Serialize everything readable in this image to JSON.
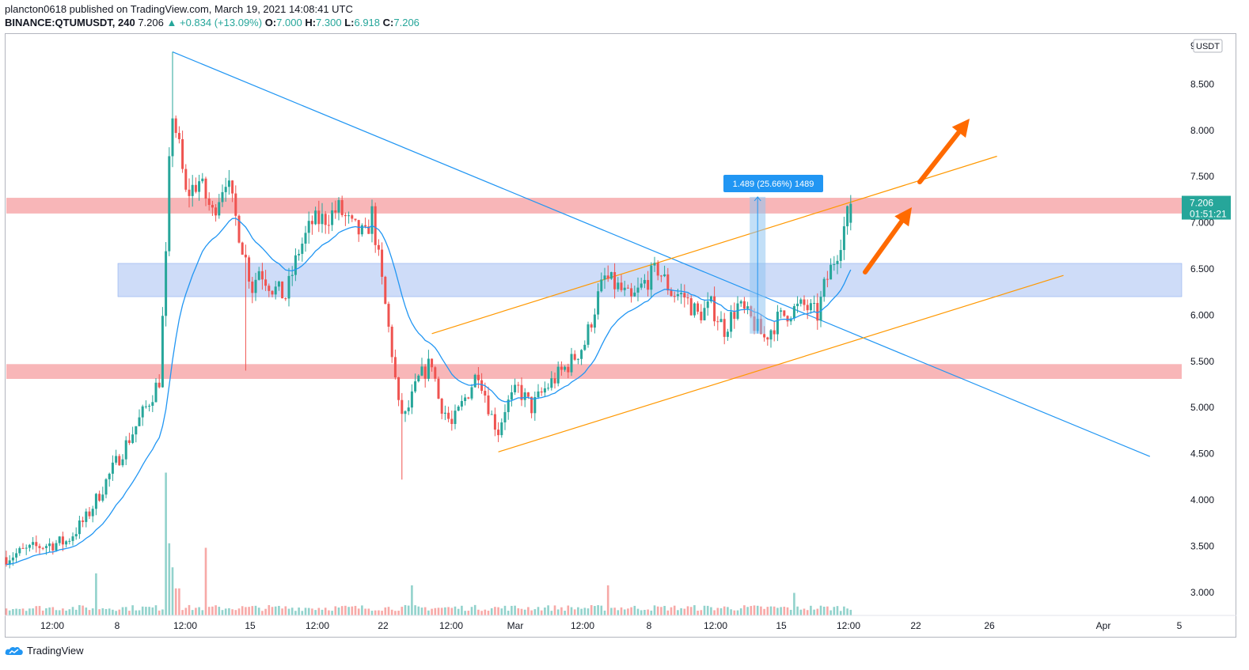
{
  "header": {
    "publisher_line": "plancton0618 published on TradingView.com, March 19, 2021 14:08:41 UTC",
    "symbol": "BINANCE:QTUMUSDT, 240",
    "last": "7.206",
    "change_arrow": "▲",
    "change": "+0.834 (+13.09%)",
    "o_label": "O:",
    "o_value": "7.000",
    "h_label": "H:",
    "h_value": "7.300",
    "l_label": "L:",
    "l_value": "6.918",
    "c_label": "C:",
    "c_value": "7.206"
  },
  "footer": {
    "brand": "TradingView",
    "logo_icon": "tradingview-logo-icon"
  },
  "colors": {
    "up": "#26a69a",
    "down": "#ef5350",
    "ma": "#2196f3",
    "trendline": "#2196f3",
    "channel": "#ff9800",
    "resistance_zone": "#f7a9ab",
    "support_zone": "#c5d6f7",
    "arrow": "#ff6a00",
    "measure": "#90c4f0"
  },
  "chart_data": {
    "type": "candlestick",
    "currency_label": "USDT",
    "ylim": [
      2.75,
      9.0
    ],
    "price_ticks": [
      "9",
      "8.500",
      "8.000",
      "7.500",
      "7.000",
      "6.500",
      "6.000",
      "5.500",
      "5.000",
      "4.500",
      "4.000",
      "3.500",
      "3.000"
    ],
    "time_ticks": [
      "12:00",
      "8",
      "12:00",
      "15",
      "12:00",
      "22",
      "12:00",
      "Mar",
      "12:00",
      "8",
      "12:00",
      "15",
      "12:00",
      "22",
      "26",
      "Apr",
      "5"
    ],
    "price_label": {
      "value": "7.206",
      "countdown": "01:51:21"
    },
    "measure_label": "1.489 (25.66%) 1489",
    "zones": [
      {
        "name": "resistance-zone",
        "from": 7.1,
        "to": 7.27
      },
      {
        "name": "support-zone",
        "from": 6.2,
        "to": 6.56
      },
      {
        "name": "lower-zone",
        "from": 5.31,
        "to": 5.47
      }
    ],
    "price_anchors": [
      [
        0,
        3.38
      ],
      [
        10,
        3.5
      ],
      [
        18,
        3.55
      ],
      [
        24,
        3.8
      ],
      [
        30,
        4.2
      ],
      [
        36,
        4.6
      ],
      [
        42,
        5.0
      ],
      [
        46,
        5.3
      ],
      [
        48,
        6.6
      ],
      [
        49,
        7.6
      ],
      [
        50,
        8.2
      ],
      [
        52,
        7.8
      ],
      [
        54,
        7.3
      ],
      [
        58,
        7.45
      ],
      [
        62,
        7.1
      ],
      [
        66,
        7.5
      ],
      [
        70,
        6.9
      ],
      [
        72,
        6.6
      ],
      [
        74,
        6.3
      ],
      [
        76,
        6.5
      ],
      [
        80,
        6.3
      ],
      [
        84,
        6.2
      ],
      [
        88,
        6.7
      ],
      [
        92,
        7.0
      ],
      [
        96,
        7.05
      ],
      [
        100,
        7.15
      ],
      [
        104,
        6.95
      ],
      [
        108,
        6.85
      ],
      [
        110,
        7.1
      ],
      [
        112,
        6.6
      ],
      [
        114,
        6.1
      ],
      [
        116,
        5.6
      ],
      [
        118,
        5.0
      ],
      [
        120,
        4.9
      ],
      [
        124,
        5.3
      ],
      [
        128,
        5.5
      ],
      [
        130,
        5.1
      ],
      [
        134,
        4.8
      ],
      [
        138,
        5.1
      ],
      [
        142,
        5.4
      ],
      [
        146,
        4.9
      ],
      [
        148,
        4.75
      ],
      [
        150,
        5.0
      ],
      [
        154,
        5.2
      ],
      [
        158,
        5.0
      ],
      [
        162,
        5.2
      ],
      [
        166,
        5.35
      ],
      [
        170,
        5.5
      ],
      [
        174,
        5.7
      ],
      [
        178,
        6.2
      ],
      [
        180,
        6.4
      ],
      [
        184,
        6.3
      ],
      [
        188,
        6.15
      ],
      [
        192,
        6.35
      ],
      [
        196,
        6.5
      ],
      [
        200,
        6.25
      ],
      [
        204,
        6.2
      ],
      [
        208,
        6.0
      ],
      [
        212,
        6.1
      ],
      [
        216,
        5.85
      ],
      [
        220,
        6.1
      ],
      [
        224,
        5.95
      ],
      [
        228,
        5.75
      ],
      [
        232,
        5.95
      ],
      [
        236,
        6.05
      ],
      [
        240,
        6.1
      ],
      [
        244,
        6.0
      ],
      [
        246,
        6.3
      ],
      [
        248,
        6.5
      ],
      [
        250,
        6.7
      ],
      [
        252,
        6.95
      ],
      [
        254,
        7.2
      ]
    ],
    "channel_upper": [
      [
        128,
        5.8
      ],
      [
        298,
        7.72
      ]
    ],
    "channel_lower": [
      [
        148,
        4.52
      ],
      [
        318,
        6.43
      ]
    ],
    "triangle_line": [
      [
        50,
        8.85
      ],
      [
        344,
        4.47
      ]
    ],
    "measure": {
      "x": 226,
      "from": 5.8,
      "to": 7.28
    }
  }
}
